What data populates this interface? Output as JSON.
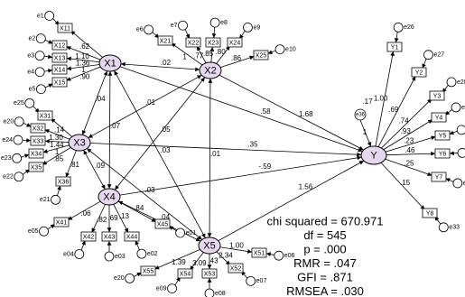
{
  "latents": [
    {
      "label": "X1"
    },
    {
      "label": "X2"
    },
    {
      "label": "X3"
    },
    {
      "label": "X4"
    },
    {
      "label": "X5"
    },
    {
      "label": "Y"
    }
  ],
  "disturbance": {
    "label": "e36",
    "variance": ".17",
    "loading": "1"
  },
  "paths": [
    {
      "from": "X1",
      "to": "Y",
      "label": ".58"
    },
    {
      "from": "X2",
      "to": "Y",
      "label": "1.68"
    },
    {
      "from": "X3",
      "to": "Y",
      "label": ".35"
    },
    {
      "from": "X4",
      "to": "Y",
      "label": "-.59"
    },
    {
      "from": "X5",
      "to": "Y",
      "label": "1.56"
    }
  ],
  "covariances": [
    {
      "from": "X1",
      "to": "X2",
      "label": ".02"
    },
    {
      "from": "X1",
      "to": "X3",
      "label": ".04"
    },
    {
      "from": "X1",
      "to": "X4",
      "label": ".07"
    },
    {
      "from": "X2",
      "to": "X3",
      "label": ".01"
    },
    {
      "from": "X2",
      "to": "X4",
      "label": ".05"
    },
    {
      "from": "X1",
      "to": "X5",
      "label": ".03"
    },
    {
      "from": "X2",
      "to": "X5",
      "label": ".01"
    },
    {
      "from": "X3",
      "to": "X4",
      "label": ".09"
    },
    {
      "from": "X3",
      "to": "X5",
      "label": ".03"
    },
    {
      "from": "X4",
      "to": "X5",
      "label": ".04"
    }
  ],
  "indicators": [
    {
      "latent": "X1",
      "items": [
        {
          "label": "X11",
          "loading": ".62",
          "error": "e1"
        },
        {
          "label": "X12",
          "loading": "1.10",
          "error": "e2"
        },
        {
          "label": "X13",
          "loading": "1.36",
          "error": "e3"
        },
        {
          "label": "X14",
          "loading": "1",
          "error": "e4"
        },
        {
          "label": "X15",
          "loading": ".90",
          "error": "e5"
        }
      ]
    },
    {
      "latent": "X2",
      "items": [
        {
          "label": "X21",
          "loading": "1",
          "error": "e6"
        },
        {
          "label": "X22",
          "loading": ".77",
          "error": "e7"
        },
        {
          "label": "X23",
          "loading": ".85",
          "error": "e8"
        },
        {
          "label": "X24",
          "loading": ".80",
          "error": "e9"
        },
        {
          "label": "X25",
          "loading": ".86",
          "error": "e10"
        }
      ]
    },
    {
      "latent": "X3",
      "items": [
        {
          "label": "X31",
          "loading": ".14",
          "error": "e25"
        },
        {
          "label": "X32",
          "loading": "1.30",
          "error": "e20"
        },
        {
          "label": "X33",
          "loading": "1.44",
          "error": "e24"
        },
        {
          "label": "X34",
          "loading": "1",
          "error": "e23"
        },
        {
          "label": "X35",
          "loading": ".85",
          "error": "e22"
        },
        {
          "label": "X36",
          "loading": ".81",
          "error": "e21"
        }
      ]
    },
    {
      "latent": "X4",
      "items": [
        {
          "label": "X41",
          "loading": ".06",
          "error": "e05"
        },
        {
          "label": "X42",
          "loading": ".82",
          "error": "e04"
        },
        {
          "label": "X43",
          "loading": ".69",
          "error": "e03"
        },
        {
          "label": "X44",
          "loading": ".13",
          "error": "e02"
        },
        {
          "label": "X45",
          "loading": ".84",
          "error": "e01"
        }
      ]
    },
    {
      "latent": "X5",
      "items": [
        {
          "label": "X51",
          "loading": "1.00",
          "error": "e06"
        },
        {
          "label": "X52",
          "loading": "2.34",
          "error": "e07"
        },
        {
          "label": "X53",
          "loading": ".43",
          "error": "e08"
        },
        {
          "label": "X54",
          "loading": "3.09",
          "error": "e09"
        },
        {
          "label": "X55",
          "loading": "1.39",
          "error": "e20"
        }
      ]
    },
    {
      "latent": "Y",
      "items": [
        {
          "label": "Y1",
          "loading": "1.00",
          "error": "e26"
        },
        {
          "label": "Y2",
          "loading": ".69",
          "error": "e27"
        },
        {
          "label": "Y3",
          "loading": ".74",
          "error": "e28"
        },
        {
          "label": "Y4",
          "loading": ".93",
          "error": "e29"
        },
        {
          "label": "Y5",
          "loading": ".23",
          "error": "e30"
        },
        {
          "label": "Y6",
          "loading": ".46",
          "error": "e31"
        },
        {
          "label": "Y7",
          "loading": ".25",
          "error": "e32"
        },
        {
          "label": "Y8",
          "loading": ".15",
          "error": "e33"
        }
      ]
    }
  ],
  "fit": [
    "chi squared = 670.971",
    "df = 545",
    "p = .000",
    "RMR = .047",
    "GFI = .871",
    "RMSEA = .030"
  ]
}
